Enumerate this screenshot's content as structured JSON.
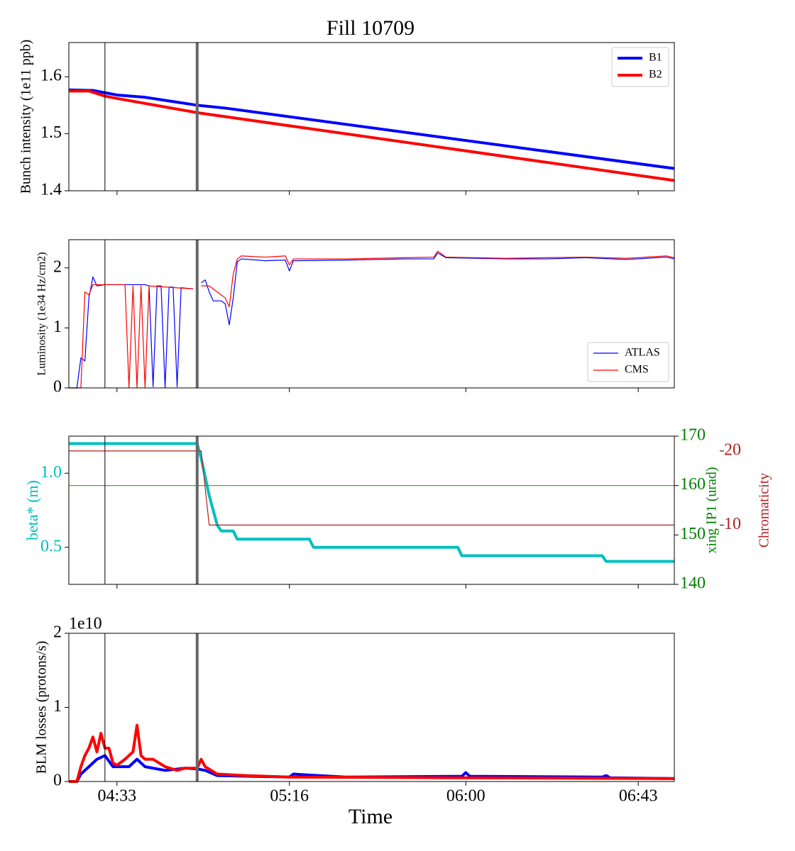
{
  "title": "Fill 10709",
  "time_axis": {
    "xlabel": "Time",
    "xlim": [
      "04:21",
      "06:52"
    ],
    "xticks": [
      "04:33",
      "05:16",
      "06:00",
      "06:43"
    ]
  },
  "time_markers": [
    "04:30",
    "04:53"
  ],
  "time_marker_colors": [
    "#000000",
    "#666666"
  ],
  "chart_data": [
    {
      "type": "line",
      "ylabel": "Bunch intensity (1e11 ppb)",
      "ylim": [
        1.4,
        1.66
      ],
      "yticks": [
        1.4,
        1.5,
        1.6
      ],
      "legend": "upper right",
      "series": [
        {
          "name": "B1",
          "color": "#0000ff",
          "x": [
            "04:21",
            "04:27",
            "04:30",
            "04:33",
            "04:40",
            "04:53",
            "05:00",
            "06:52"
          ],
          "values": [
            1.577,
            1.576,
            1.572,
            1.568,
            1.564,
            1.55,
            1.545,
            1.439
          ]
        },
        {
          "name": "B2",
          "color": "#ff0000",
          "x": [
            "04:21",
            "04:26",
            "04:30",
            "04:33",
            "04:53",
            "05:00",
            "06:52"
          ],
          "values": [
            1.575,
            1.575,
            1.566,
            1.562,
            1.537,
            1.53,
            1.418
          ]
        }
      ]
    },
    {
      "type": "line",
      "ylabel": "Luminosity (1e34 Hz/cm2)",
      "ylim": [
        0,
        2.47
      ],
      "yticks": [
        0,
        1,
        2
      ],
      "legend": "lower right",
      "series": [
        {
          "name": "ATLAS",
          "color": "#0000ff",
          "x": [
            "04:21",
            "04:23",
            "04:24",
            "04:25",
            "04:26",
            "04:27",
            "04:28",
            "04:30",
            "04:40",
            "04:41",
            "04:42",
            "04:43",
            "04:44",
            "04:45",
            "04:46",
            "04:47",
            "04:48",
            "04:49",
            "04:52",
            "04:53",
            "04:54",
            "04:55",
            "04:56",
            "04:57",
            "04:59",
            "05:00",
            "05:01",
            "05:02",
            "05:03",
            "05:04",
            "05:10",
            "05:15",
            "05:16",
            "05:17",
            "05:30",
            "05:45",
            "05:52",
            "05:53",
            "05:55",
            "06:10",
            "06:20",
            "06:30",
            "06:40",
            "06:50",
            "06:52"
          ],
          "values": [
            0,
            0,
            0.5,
            0.45,
            1.5,
            1.85,
            1.7,
            1.72,
            1.72,
            1.7,
            0.02,
            1.7,
            1.7,
            0,
            1.68,
            1.68,
            0.02,
            1.67,
            1.65,
            null,
            1.75,
            1.8,
            1.6,
            1.45,
            1.45,
            1.4,
            1.05,
            1.5,
            2.1,
            2.15,
            2.12,
            2.13,
            1.95,
            2.12,
            2.13,
            2.15,
            2.15,
            2.25,
            2.17,
            2.15,
            2.15,
            2.17,
            2.14,
            2.18,
            2.15
          ]
        },
        {
          "name": "CMS",
          "color": "#ff0000",
          "x": [
            "04:21",
            "04:24",
            "04:25",
            "04:26",
            "04:27",
            "04:35",
            "04:36",
            "04:37",
            "04:38",
            "04:39",
            "04:40",
            "04:41",
            "04:52",
            "04:53",
            "04:54",
            "04:56",
            "04:58",
            "05:00",
            "05:01",
            "05:02",
            "05:03",
            "05:04",
            "05:10",
            "05:15",
            "05:16",
            "05:17",
            "05:30",
            "05:45",
            "05:52",
            "05:53",
            "05:55",
            "06:10",
            "06:20",
            "06:30",
            "06:40",
            "06:50",
            "06:52"
          ],
          "values": [
            0,
            0,
            1.6,
            1.55,
            1.72,
            1.72,
            0,
            1.7,
            0,
            1.7,
            0,
            1.7,
            1.65,
            null,
            1.7,
            1.7,
            1.6,
            1.5,
            1.35,
            1.9,
            2.15,
            2.2,
            2.18,
            2.2,
            2.05,
            2.15,
            2.15,
            2.17,
            2.18,
            2.28,
            2.18,
            2.16,
            2.17,
            2.18,
            2.16,
            2.2,
            2.17
          ]
        }
      ]
    },
    {
      "type": "line",
      "ylabel": "beta* (m)",
      "ycolor": "#00bfbf",
      "ylim": [
        0.25,
        1.25
      ],
      "yticks": [
        0.5,
        {
          "value": 1,
          "label": "1.0"
        }
      ],
      "y2label": "xing IP1 (urad)",
      "y2color": "#008000",
      "y2lim": [
        140,
        170
      ],
      "y2ticks": [
        140,
        150,
        160,
        170
      ],
      "y3label": "Chromaticity",
      "y3color": "#b22222",
      "y3lim": [
        2,
        22
      ],
      "y3ticks": [
        10,
        20
      ],
      "series": [
        {
          "name": "beta*",
          "color": "#00bfbf",
          "axis": "y",
          "x": [
            "04:21",
            "04:53",
            "04:54",
            "04:56",
            "04:58",
            "04:59",
            "05:02",
            "05:03",
            "05:21",
            "05:22",
            "05:58",
            "05:59",
            "06:34",
            "06:35",
            "06:52"
          ],
          "values": [
            1.2,
            1.2,
            1.1,
            0.85,
            0.65,
            0.61,
            0.61,
            0.555,
            0.555,
            0.5,
            0.5,
            0.443,
            0.443,
            0.405,
            0.405
          ]
        },
        {
          "name": "xing IP1",
          "color": "#2ca02c",
          "axis": "y2",
          "x": [
            "04:21",
            "06:52"
          ],
          "values": [
            160,
            160
          ]
        },
        {
          "name": "Chromaticity",
          "color": "#b22222",
          "axis": "y3",
          "x": [
            "04:21",
            "04:54",
            "04:56",
            "06:52"
          ],
          "values": [
            20,
            20,
            10,
            10
          ]
        }
      ]
    },
    {
      "type": "line",
      "ylabel": "BLM losses (protons/s)",
      "offset_label": "1e10",
      "ylim": [
        0,
        20000000000.0
      ],
      "yticks": [
        0,
        {
          "value": 10000000000.0,
          "label": "1"
        },
        {
          "value": 20000000000.0,
          "label": "2"
        }
      ],
      "series": [
        {
          "name": "B1",
          "color": "#0000ff",
          "x": [
            "04:21",
            "04:23",
            "04:24",
            "04:26",
            "04:28",
            "04:30",
            "04:32",
            "04:36",
            "04:38",
            "04:40",
            "04:45",
            "04:50",
            "04:53",
            "04:55",
            "04:58",
            "05:16",
            "05:17",
            "05:20",
            "05:30",
            "05:59",
            "06:00",
            "06:01",
            "06:34",
            "06:35",
            "06:36",
            "06:52"
          ],
          "values": [
            0,
            0,
            1000000000.0,
            2000000000.0,
            3000000000.0,
            3500000000.0,
            2000000000.0,
            2000000000.0,
            3000000000.0,
            2000000000.0,
            1500000000.0,
            1800000000.0,
            1700000000.0,
            1500000000.0,
            800000000.0,
            600000000.0,
            1000000000.0,
            900000000.0,
            600000000.0,
            700000000.0,
            1200000000.0,
            700000000.0,
            600000000.0,
            800000000.0,
            500000000.0,
            400000000.0
          ]
        },
        {
          "name": "B2",
          "color": "#ff0000",
          "x": [
            "04:21",
            "04:23",
            "04:24",
            "04:25",
            "04:26",
            "04:27",
            "04:28",
            "04:29",
            "04:30",
            "04:31",
            "04:32",
            "04:33",
            "04:35",
            "04:37",
            "04:38",
            "04:39",
            "04:40",
            "04:42",
            "04:45",
            "04:48",
            "04:50",
            "04:53",
            "04:54",
            "04:55",
            "04:58",
            "05:05",
            "05:16",
            "06:00",
            "06:52"
          ],
          "values": [
            0,
            0,
            2000000000.0,
            3500000000.0,
            4500000000.0,
            6000000000.0,
            4000000000.0,
            6500000000.0,
            4500000000.0,
            4500000000.0,
            2500000000.0,
            2200000000.0,
            3000000000.0,
            4000000000.0,
            7600000000.0,
            3500000000.0,
            3000000000.0,
            3000000000.0,
            2000000000.0,
            1500000000.0,
            1800000000.0,
            1800000000.0,
            3000000000.0,
            2000000000.0,
            1000000000.0,
            800000000.0,
            600000000.0,
            500000000.0,
            400000000.0
          ]
        }
      ]
    }
  ]
}
